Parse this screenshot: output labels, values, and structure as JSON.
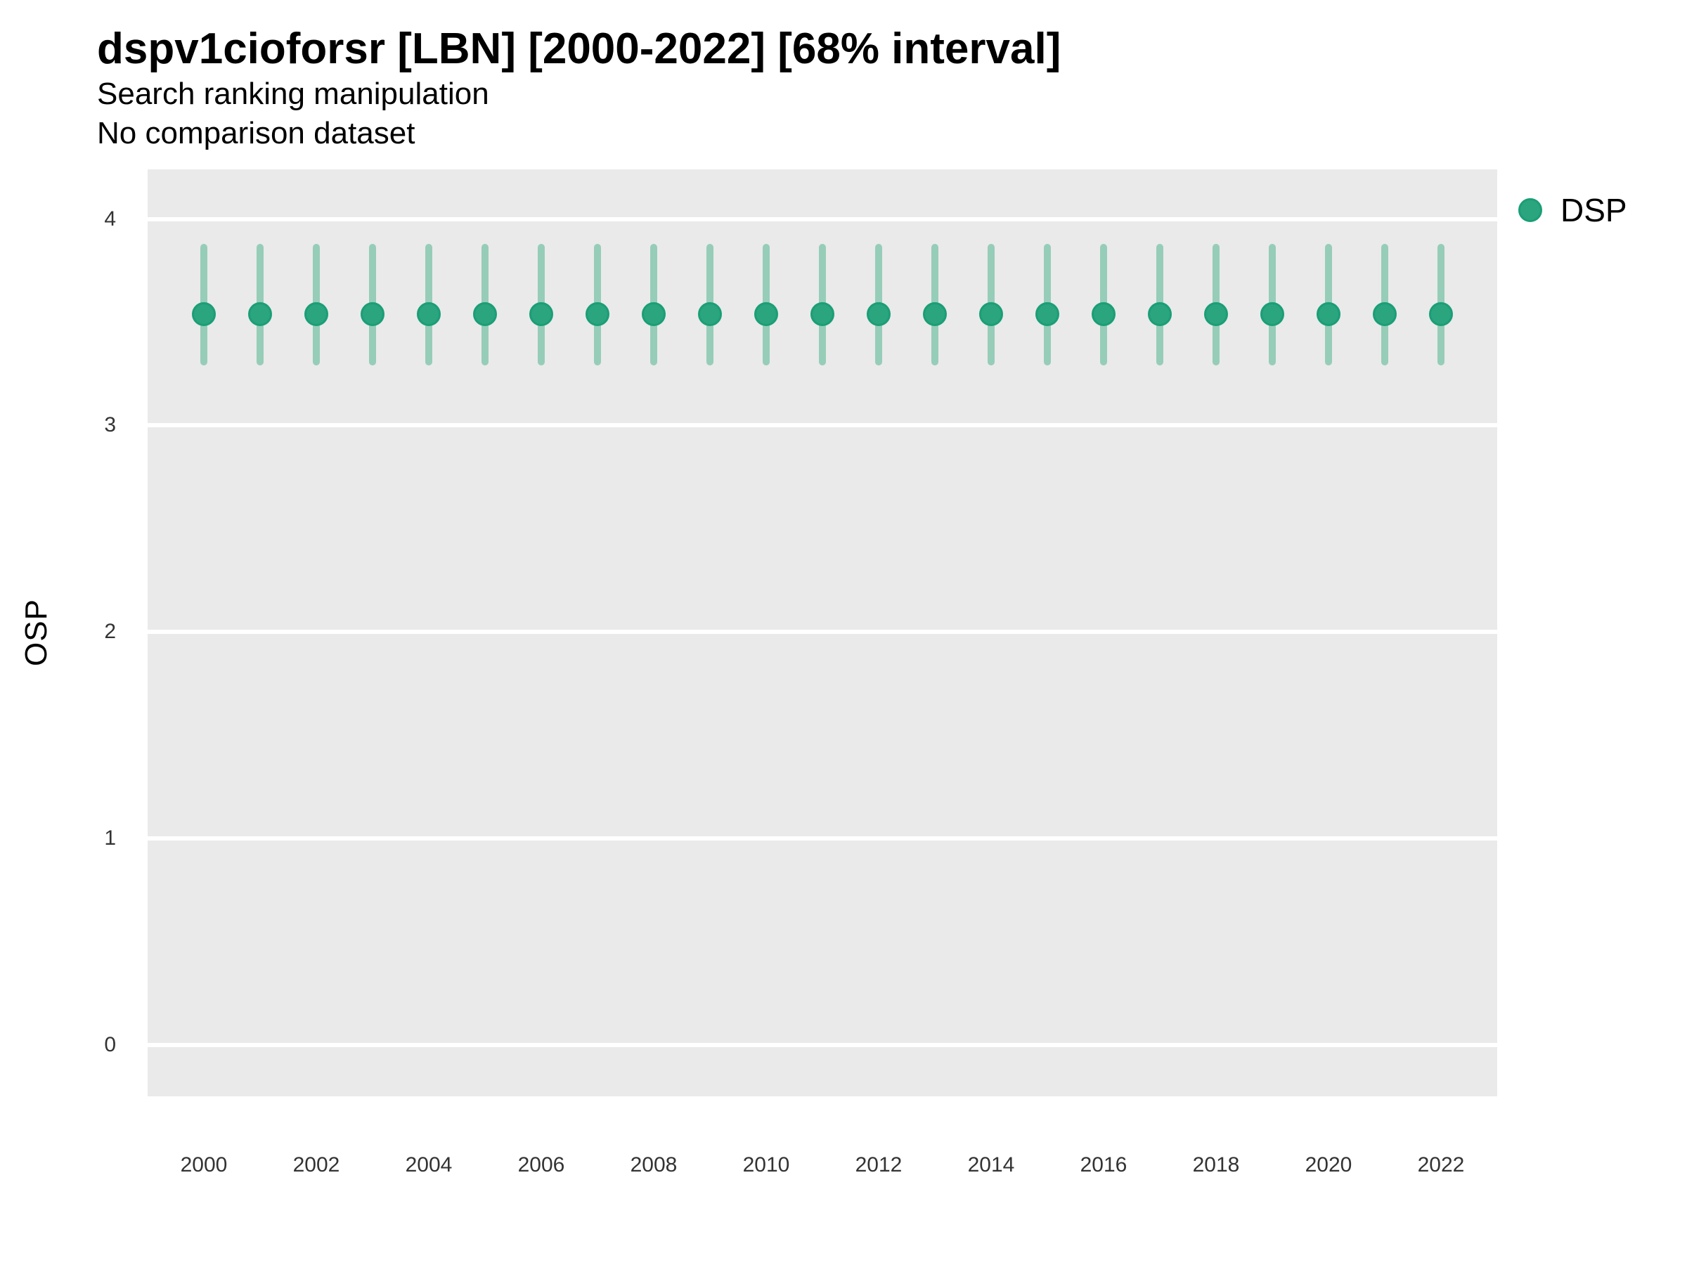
{
  "header": {},
  "chart_data": {
    "type": "pointrange",
    "title": "dspv1cioforsr [LBN] [2000-2022] [68% interval]",
    "subtitle": [
      "Search ranking manipulation",
      "No comparison dataset"
    ],
    "interval_label": "68% interval",
    "xlabel": "",
    "ylabel": "OSP",
    "legend": {
      "position": "right-top",
      "entries": [
        {
          "label": "DSP"
        }
      ]
    },
    "categories": [
      2000,
      2001,
      2002,
      2003,
      2004,
      2005,
      2006,
      2007,
      2008,
      2009,
      2010,
      2011,
      2012,
      2013,
      2014,
      2015,
      2016,
      2017,
      2018,
      2019,
      2020,
      2021,
      2022
    ],
    "series": [
      {
        "name": "DSP",
        "point": [
          3.54,
          3.54,
          3.54,
          3.54,
          3.54,
          3.54,
          3.54,
          3.54,
          3.54,
          3.54,
          3.54,
          3.54,
          3.54,
          3.54,
          3.54,
          3.54,
          3.54,
          3.54,
          3.54,
          3.54,
          3.54,
          3.54,
          3.54
        ],
        "lower": [
          3.29,
          3.29,
          3.29,
          3.29,
          3.29,
          3.29,
          3.29,
          3.29,
          3.29,
          3.29,
          3.29,
          3.29,
          3.29,
          3.29,
          3.29,
          3.29,
          3.29,
          3.29,
          3.29,
          3.29,
          3.29,
          3.29,
          3.29
        ],
        "upper": [
          3.88,
          3.88,
          3.88,
          3.88,
          3.88,
          3.88,
          3.88,
          3.88,
          3.88,
          3.88,
          3.88,
          3.88,
          3.88,
          3.88,
          3.88,
          3.88,
          3.88,
          3.88,
          3.88,
          3.88,
          3.88,
          3.88,
          3.88
        ]
      }
    ],
    "xticks": [
      2000,
      2002,
      2004,
      2006,
      2008,
      2010,
      2012,
      2014,
      2016,
      2018,
      2020,
      2022
    ],
    "yticks": [
      0,
      1,
      2,
      3,
      4
    ],
    "xlim": [
      1999.0,
      2023.0
    ],
    "ylim": [
      -0.25,
      4.24
    ],
    "grid": {
      "major_y": true,
      "major_x": false,
      "minor": false
    },
    "colors": {
      "point_fill": "#2aa57e",
      "point_stroke": "#1b9e77",
      "interval": "#96cdb8",
      "panel_bg": "#eaeaea",
      "gridline": "#ffffff",
      "tick_text": "#333333",
      "title_text": "#000000"
    }
  }
}
